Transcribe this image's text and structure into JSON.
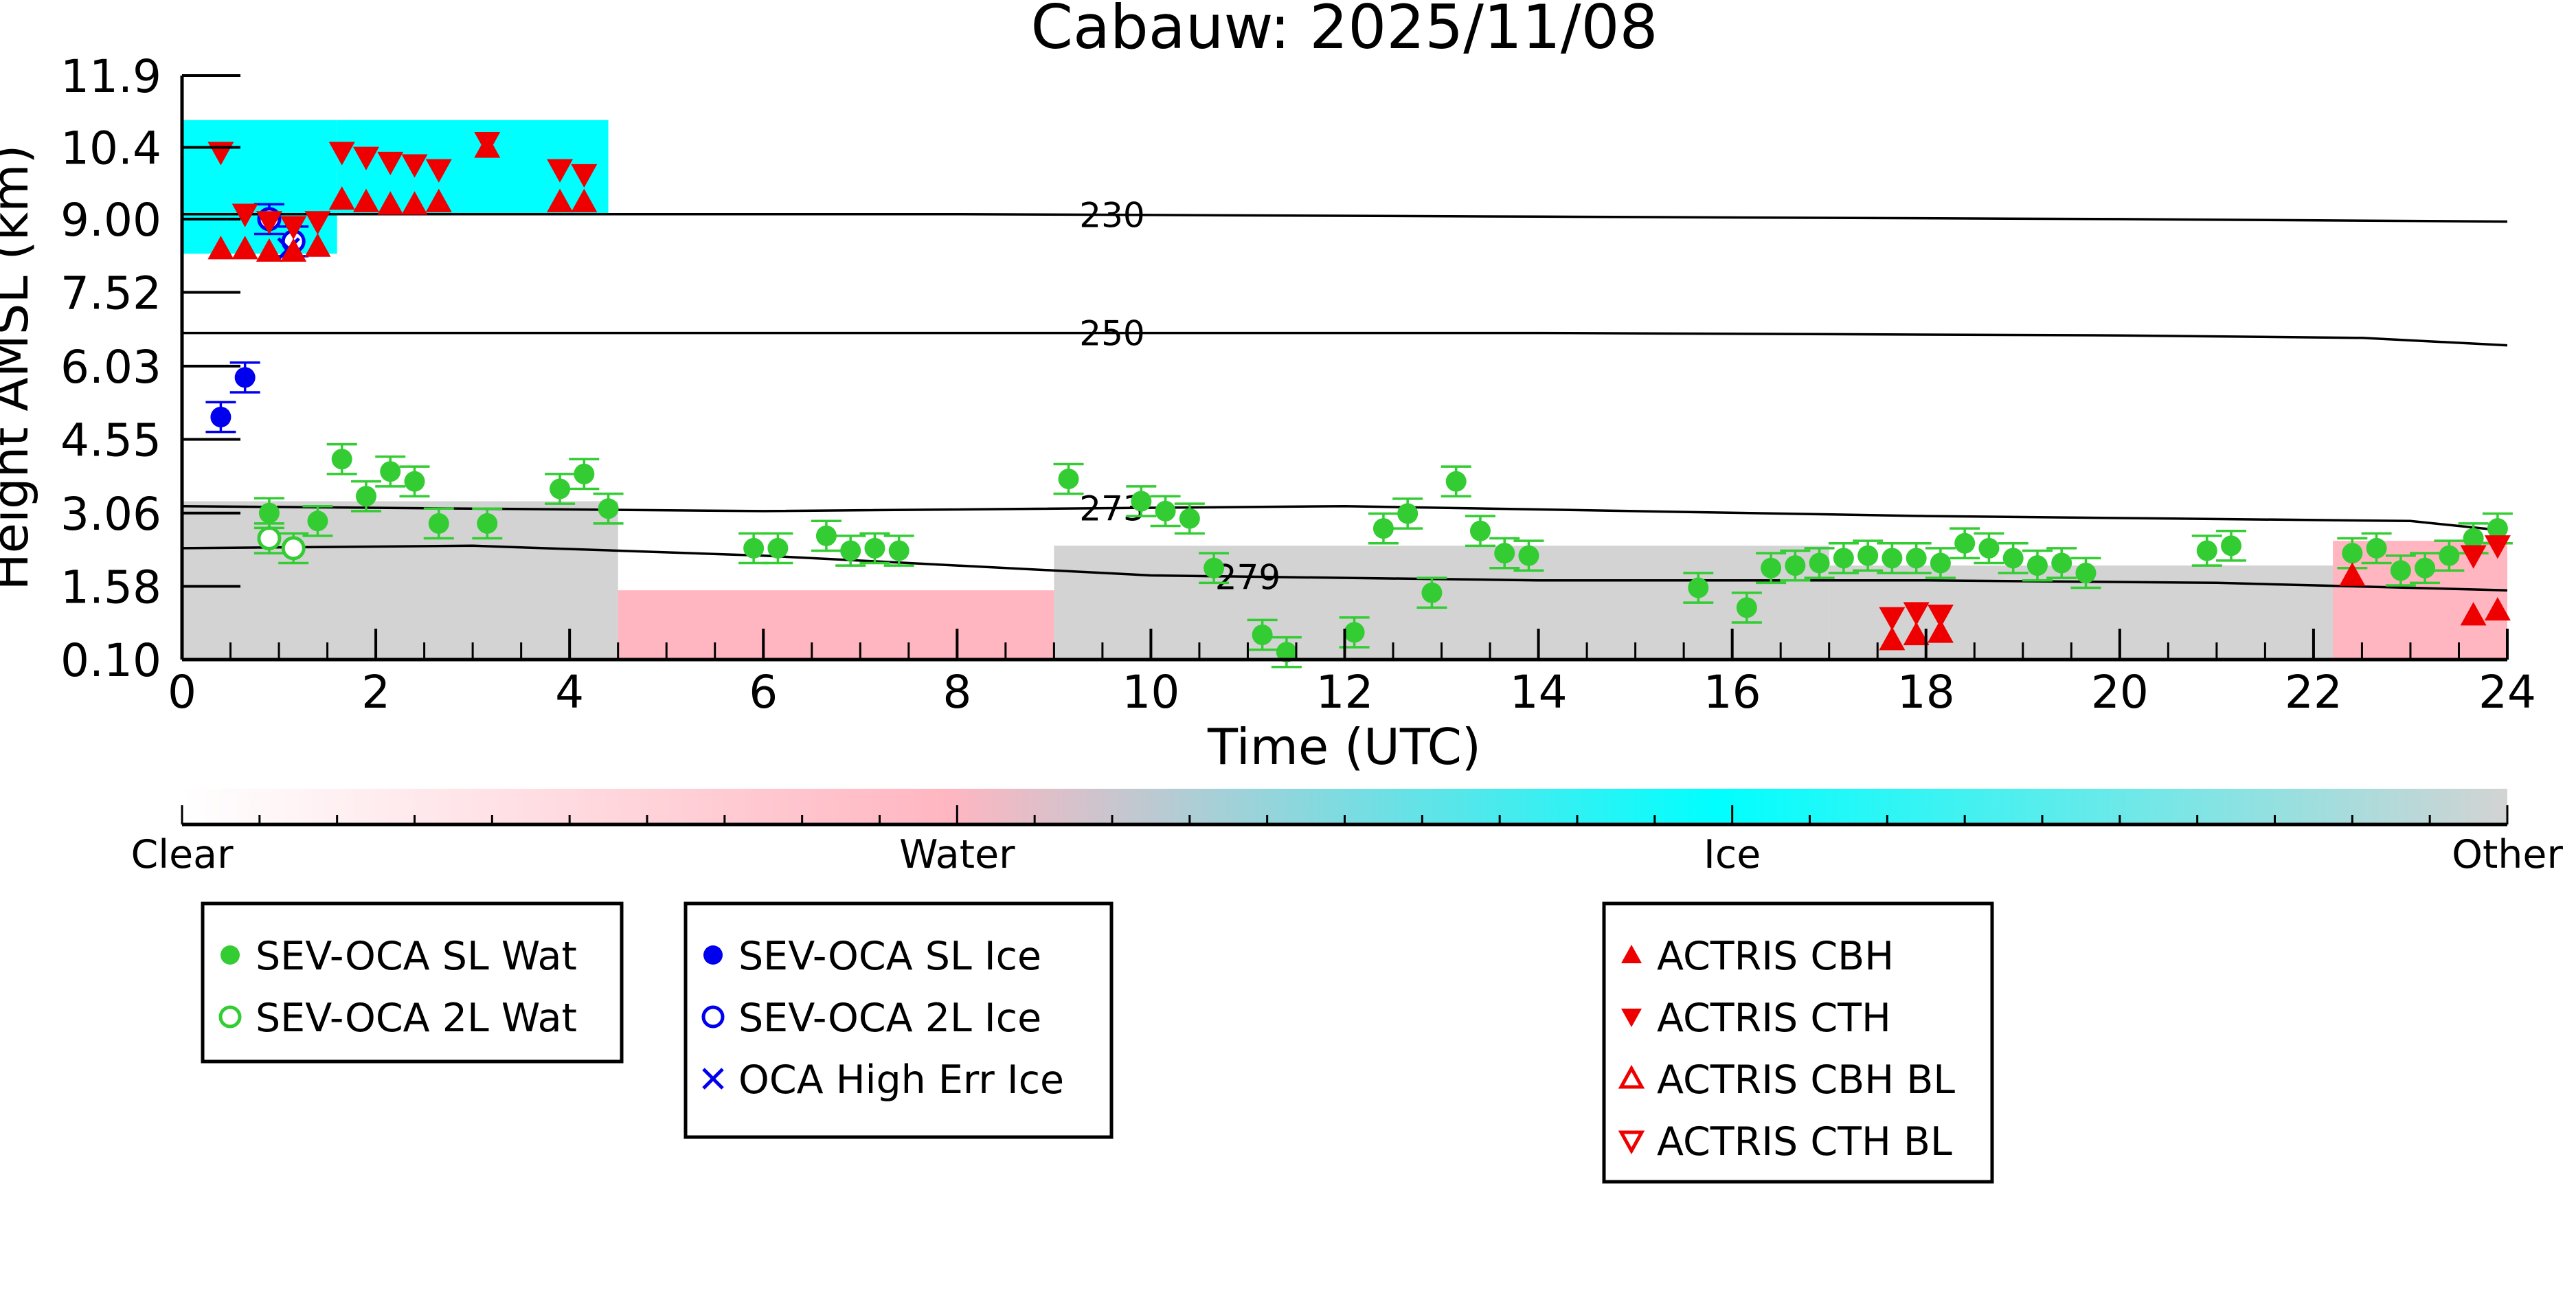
{
  "chart_data": {
    "type": "scatter",
    "title": "Cabauw: 2025/11/08",
    "xlabel": "Time (UTC)",
    "ylabel": "Height AMSL (km)",
    "xlim": [
      0,
      24
    ],
    "ylim": [
      0.1,
      11.9
    ],
    "x_ticks": [
      "0",
      "2",
      "4",
      "6",
      "8",
      "10",
      "12",
      "14",
      "16",
      "18",
      "20",
      "22",
      "24"
    ],
    "y_ticks": [
      "0.10",
      "1.58",
      "3.06",
      "4.55",
      "6.03",
      "7.52",
      "9.00",
      "10.4",
      "11.9"
    ],
    "y_tick_values": [
      0.1,
      1.58,
      3.06,
      4.55,
      6.03,
      7.52,
      9.0,
      10.45,
      11.9
    ],
    "colorbar": {
      "labels": [
        "Clear",
        "Water",
        "Ice",
        "Other"
      ],
      "colors": [
        "#ffffff",
        "#ffb6c1",
        "#00ffff",
        "#d3d3d3"
      ]
    },
    "background_layers": [
      {
        "class": "Other",
        "color": "#d3d3d3",
        "x_start": 0.0,
        "x_end": 4.5,
        "top": 3.3
      },
      {
        "class": "Water",
        "color": "#ffb6c1",
        "x_start": 4.5,
        "x_end": 9.0,
        "top": 1.5
      },
      {
        "class": "Other",
        "color": "#d3d3d3",
        "x_start": 9.0,
        "x_end": 17.0,
        "top": 2.4
      },
      {
        "class": "Other",
        "color": "#d3d3d3",
        "x_start": 17.0,
        "x_end": 24.0,
        "top": 2.0
      },
      {
        "class": "Water",
        "color": "#ffb6c1",
        "x_start": 22.2,
        "x_end": 24.0,
        "top": 2.5
      },
      {
        "class": "Ice",
        "color": "#00ffff",
        "x_start": 0.0,
        "x_end": 1.6,
        "top": 11.0,
        "bottom": 8.3
      },
      {
        "class": "Ice",
        "color": "#00ffff",
        "x_start": 1.6,
        "x_end": 4.4,
        "top": 11.0,
        "bottom": 9.1
      }
    ],
    "contours": [
      {
        "label": "230",
        "label_x": 9.6,
        "points": [
          [
            0,
            9.1
          ],
          [
            8,
            9.1
          ],
          [
            14,
            9.05
          ],
          [
            20,
            9.0
          ],
          [
            24,
            8.95
          ]
        ]
      },
      {
        "label": "250",
        "label_x": 9.6,
        "points": [
          [
            0,
            6.7
          ],
          [
            8,
            6.7
          ],
          [
            14,
            6.7
          ],
          [
            20,
            6.65
          ],
          [
            22.5,
            6.6
          ],
          [
            24,
            6.45
          ]
        ]
      },
      {
        "label": "273",
        "label_x": 9.6,
        "points": [
          [
            0,
            3.2
          ],
          [
            6,
            3.1
          ],
          [
            12,
            3.2
          ],
          [
            18,
            3.0
          ],
          [
            23,
            2.9
          ],
          [
            24,
            2.7
          ]
        ]
      },
      {
        "label": "279",
        "label_x": 11.0,
        "points": [
          [
            0,
            2.35
          ],
          [
            3,
            2.4
          ],
          [
            6,
            2.2
          ],
          [
            10,
            1.8
          ],
          [
            14,
            1.7
          ],
          [
            18,
            1.7
          ],
          [
            21,
            1.65
          ],
          [
            24,
            1.5
          ]
        ]
      }
    ],
    "series": [
      {
        "name": "SEV-OCA SL Wat",
        "color": "#33cc33",
        "marker": "filled-circle",
        "points": [
          [
            0.9,
            3.06
          ],
          [
            1.4,
            2.9
          ],
          [
            1.65,
            4.15
          ],
          [
            1.9,
            3.4
          ],
          [
            2.15,
            3.9
          ],
          [
            2.4,
            3.7
          ],
          [
            2.65,
            2.85
          ],
          [
            3.15,
            2.85
          ],
          [
            3.9,
            3.55
          ],
          [
            4.15,
            3.85
          ],
          [
            4.4,
            3.15
          ],
          [
            5.9,
            2.35
          ],
          [
            6.15,
            2.35
          ],
          [
            6.65,
            2.6
          ],
          [
            6.9,
            2.3
          ],
          [
            7.15,
            2.35
          ],
          [
            7.4,
            2.3
          ],
          [
            9.15,
            3.75
          ],
          [
            9.9,
            3.3
          ],
          [
            10.15,
            3.1
          ],
          [
            10.4,
            2.95
          ],
          [
            10.65,
            1.95
          ],
          [
            11.15,
            0.6
          ],
          [
            11.4,
            0.25
          ],
          [
            12.1,
            0.65
          ],
          [
            12.4,
            2.75
          ],
          [
            12.65,
            3.05
          ],
          [
            12.9,
            1.45
          ],
          [
            13.15,
            3.7
          ],
          [
            13.4,
            2.7
          ],
          [
            13.65,
            2.25
          ],
          [
            13.9,
            2.2
          ],
          [
            15.65,
            1.55
          ],
          [
            16.15,
            1.15
          ],
          [
            16.4,
            1.95
          ],
          [
            16.65,
            2.0
          ],
          [
            16.9,
            2.05
          ],
          [
            17.15,
            2.15
          ],
          [
            17.4,
            2.2
          ],
          [
            17.65,
            2.15
          ],
          [
            17.9,
            2.15
          ],
          [
            18.15,
            2.05
          ],
          [
            18.4,
            2.45
          ],
          [
            18.65,
            2.35
          ],
          [
            18.9,
            2.15
          ],
          [
            19.15,
            2.0
          ],
          [
            19.4,
            2.05
          ],
          [
            19.65,
            1.85
          ],
          [
            20.9,
            2.3
          ],
          [
            21.15,
            2.4
          ],
          [
            22.4,
            2.25
          ],
          [
            22.65,
            2.35
          ],
          [
            22.9,
            1.9
          ],
          [
            23.15,
            1.95
          ],
          [
            23.4,
            2.2
          ],
          [
            23.65,
            2.55
          ],
          [
            23.9,
            2.75
          ]
        ]
      },
      {
        "name": "SEV-OCA 2L Wat",
        "color": "#33cc33",
        "marker": "open-circle",
        "points": [
          [
            0.9,
            2.55
          ],
          [
            1.15,
            2.35
          ]
        ]
      },
      {
        "name": "SEV-OCA SL Ice",
        "color": "#0000ee",
        "marker": "filled-circle",
        "points": [
          [
            0.4,
            5.0
          ],
          [
            0.65,
            5.8
          ]
        ]
      },
      {
        "name": "SEV-OCA 2L Ice",
        "color": "#0000ee",
        "marker": "open-circle",
        "points": [
          [
            0.9,
            9.0
          ],
          [
            1.15,
            8.55
          ]
        ]
      },
      {
        "name": "OCA High Err Ice",
        "color": "#0000ee",
        "marker": "x",
        "points": [
          [
            1.1,
            8.4
          ]
        ]
      },
      {
        "name": "ACTRIS CBH",
        "color": "#ee0000",
        "marker": "triangle-up",
        "points": [
          [
            0.4,
            8.4
          ],
          [
            0.65,
            8.4
          ],
          [
            0.9,
            8.35
          ],
          [
            1.15,
            8.35
          ],
          [
            1.4,
            8.45
          ],
          [
            1.65,
            9.4
          ],
          [
            1.9,
            9.35
          ],
          [
            2.15,
            9.3
          ],
          [
            2.4,
            9.3
          ],
          [
            2.65,
            9.35
          ],
          [
            3.15,
            10.45
          ],
          [
            3.9,
            9.35
          ],
          [
            4.15,
            9.35
          ],
          [
            17.65,
            0.5
          ],
          [
            17.9,
            0.6
          ],
          [
            18.15,
            0.65
          ],
          [
            22.4,
            1.8
          ],
          [
            23.65,
            1.0
          ],
          [
            23.9,
            1.1
          ]
        ]
      },
      {
        "name": "ACTRIS CTH",
        "color": "#ee0000",
        "marker": "triangle-down",
        "points": [
          [
            0.4,
            10.35
          ],
          [
            0.65,
            9.1
          ],
          [
            0.9,
            8.95
          ],
          [
            1.15,
            8.85
          ],
          [
            1.4,
            8.95
          ],
          [
            1.65,
            10.35
          ],
          [
            1.9,
            10.25
          ],
          [
            2.15,
            10.15
          ],
          [
            2.4,
            10.1
          ],
          [
            2.65,
            10.0
          ],
          [
            3.15,
            10.55
          ],
          [
            3.9,
            10.0
          ],
          [
            4.15,
            9.9
          ],
          [
            17.65,
            0.95
          ],
          [
            17.9,
            1.05
          ],
          [
            18.15,
            1.0
          ],
          [
            23.65,
            2.2
          ],
          [
            23.9,
            2.4
          ]
        ]
      },
      {
        "name": "ACTRIS CBH BL",
        "color": "#ee0000",
        "marker": "open-triangle-up",
        "points": []
      },
      {
        "name": "ACTRIS CTH BL",
        "color": "#ee0000",
        "marker": "open-triangle-down",
        "points": []
      }
    ],
    "legend_groups": [
      [
        "SEV-OCA SL Wat",
        "SEV-OCA 2L Wat"
      ],
      [
        "SEV-OCA SL Ice",
        "SEV-OCA 2L Ice",
        "OCA High Err Ice"
      ],
      [
        "ACTRIS CBH",
        "ACTRIS CTH",
        "ACTRIS CBH BL",
        "ACTRIS CTH BL"
      ]
    ],
    "legend_placement": "bottom",
    "grid": false
  }
}
